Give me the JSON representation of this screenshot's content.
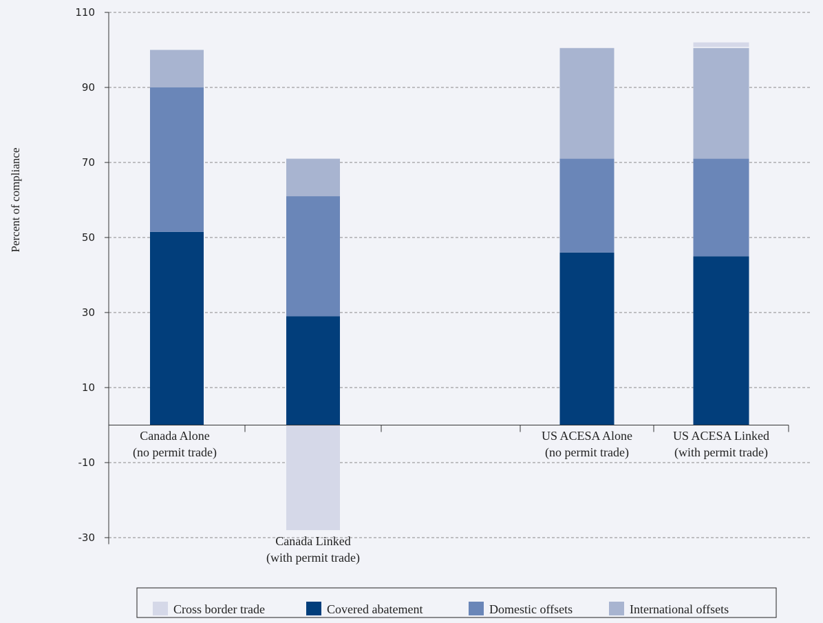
{
  "chart_data": {
    "type": "bar",
    "stacked": true,
    "categories": [
      "Canada Alone (no permit trade)",
      "Canada Linked (with permit trade)",
      "",
      "US ACESA Alone (no permit trade)",
      "US ACESA Linked (with permit trade)"
    ],
    "category_label_lines": [
      [
        "Canada Alone",
        "(no permit trade)"
      ],
      [
        "Canada Linked",
        "(with permit trade)"
      ],
      [],
      [
        "US ACESA Alone",
        "(no permit trade)"
      ],
      [
        "US ACESA Linked",
        "(with permit trade)"
      ]
    ],
    "series": [
      {
        "name": "Cross border trade",
        "color": "#d5d8e8",
        "values": [
          0,
          -28,
          null,
          0,
          1.5
        ]
      },
      {
        "name": "Covered abatement",
        "color": "#023e7b",
        "values": [
          51.5,
          29,
          null,
          46,
          45
        ]
      },
      {
        "name": "Domestic offsets",
        "color": "#6a86b8",
        "values": [
          38.5,
          32,
          null,
          25,
          26
        ]
      },
      {
        "name": "International offsets",
        "color": "#a8b4d0",
        "values": [
          10,
          10,
          null,
          29.5,
          29.5
        ]
      }
    ],
    "ylabel": "Percent of compliance",
    "xlabel": "",
    "title": "",
    "ylim": [
      -31,
      110
    ],
    "yticks": [
      110,
      90,
      70,
      50,
      30,
      10,
      -10,
      -30
    ],
    "grid": true,
    "legend_position": "bottom"
  }
}
